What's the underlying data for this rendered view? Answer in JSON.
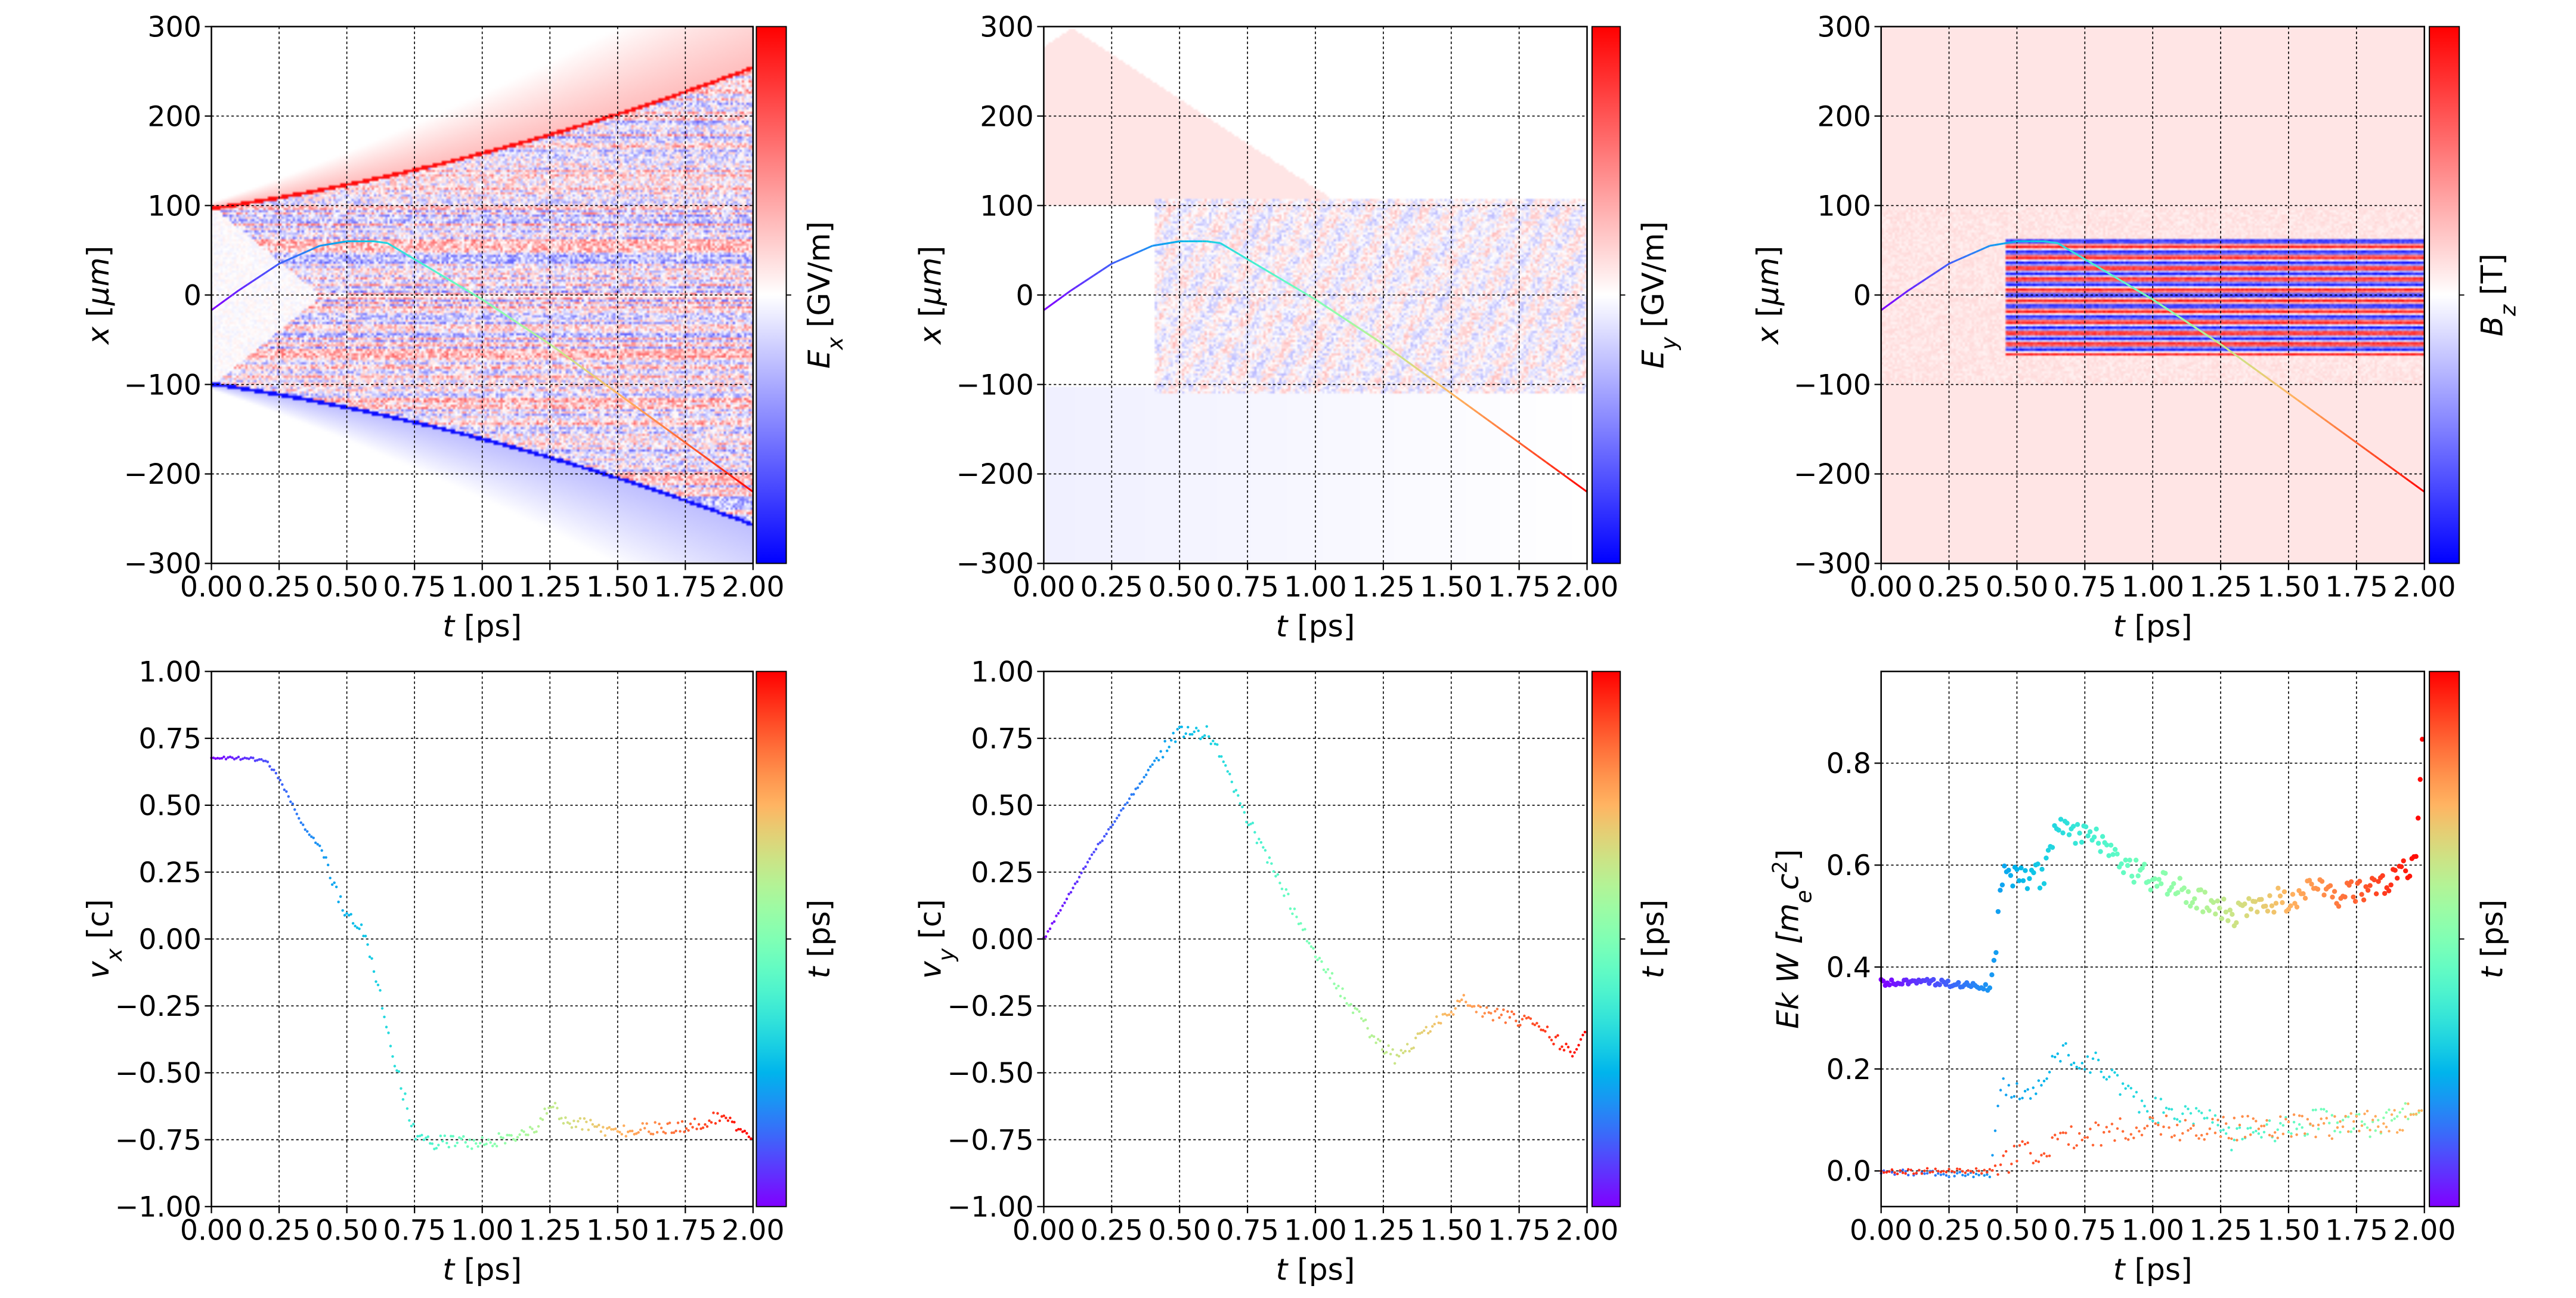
{
  "figure": {
    "panels": [
      {
        "ylabel": [
          {
            "t": "x",
            "i": true
          },
          {
            "t": "  [",
            "i": false
          },
          {
            "t": "μm",
            "i": true
          },
          {
            "t": "]"
          }
        ],
        "xlabel": [
          {
            "t": "t",
            "i": true
          },
          {
            "t": "  [ps]"
          }
        ],
        "colorbar_label": [
          {
            "t": "E",
            "i": true
          },
          {
            "t": "x",
            "i": true,
            "sub": true
          },
          {
            "t": "  [GV/m]"
          }
        ],
        "colormap": "bwr"
      },
      {
        "ylabel": [
          {
            "t": "x",
            "i": true
          },
          {
            "t": "  [",
            "i": false
          },
          {
            "t": "μm",
            "i": true
          },
          {
            "t": "]"
          }
        ],
        "xlabel": [
          {
            "t": "t",
            "i": true
          },
          {
            "t": "  [ps]"
          }
        ],
        "colorbar_label": [
          {
            "t": "E",
            "i": true
          },
          {
            "t": "y",
            "i": true,
            "sub": true
          },
          {
            "t": "  [GV/m]"
          }
        ],
        "colormap": "bwr"
      },
      {
        "ylabel": [
          {
            "t": "x",
            "i": true
          },
          {
            "t": "  [",
            "i": false
          },
          {
            "t": "μm",
            "i": true
          },
          {
            "t": "]"
          }
        ],
        "xlabel": [
          {
            "t": "t",
            "i": true
          },
          {
            "t": "  [ps]"
          }
        ],
        "colorbar_label": [
          {
            "t": "B",
            "i": true
          },
          {
            "t": "z",
            "i": true,
            "sub": true
          },
          {
            "t": "  [T]"
          }
        ],
        "colormap": "bwr"
      },
      {
        "ylabel": [
          {
            "t": "v",
            "i": true
          },
          {
            "t": "x",
            "i": true,
            "sub": true
          },
          {
            "t": " [c]"
          }
        ],
        "xlabel": [
          {
            "t": "t",
            "i": true
          },
          {
            "t": "  [ps]"
          }
        ],
        "colorbar_label": [
          {
            "t": "t",
            "i": true
          },
          {
            "t": "  [ps]"
          }
        ],
        "colormap": "rainbow"
      },
      {
        "ylabel": [
          {
            "t": "v",
            "i": true
          },
          {
            "t": "y",
            "i": true,
            "sub": true
          },
          {
            "t": " [c]"
          }
        ],
        "xlabel": [
          {
            "t": "t",
            "i": true
          },
          {
            "t": "  [ps]"
          }
        ],
        "colorbar_label": [
          {
            "t": "t",
            "i": true
          },
          {
            "t": "  [ps]"
          }
        ],
        "colormap": "rainbow"
      },
      {
        "ylabel": [
          {
            "t": "Ek W [",
            "i": true
          },
          {
            "t": "m",
            "i": true
          },
          {
            "t": "e",
            "i": true,
            "sub": true
          },
          {
            "t": "c",
            "i": true
          },
          {
            "t": "2",
            "sup": true
          },
          {
            "t": "]"
          }
        ],
        "xlabel": [
          {
            "t": "t",
            "i": true
          },
          {
            "t": "  [ps]"
          }
        ],
        "colorbar_label": [
          {
            "t": "t",
            "i": true
          },
          {
            "t": "  [ps]"
          }
        ],
        "colormap": "rainbow"
      }
    ]
  },
  "chart_data": [
    {
      "type": "heatmap",
      "field": "Ex",
      "xlim": [
        0,
        2
      ],
      "ylim": [
        -300,
        300
      ],
      "grid": true,
      "xticks": [
        "0.00",
        "0.25",
        "0.50",
        "0.75",
        "1.00",
        "1.25",
        "1.50",
        "1.75",
        "2.00"
      ],
      "yticks": [
        "−300",
        "−200",
        "−100",
        "0",
        "100",
        "200",
        "300"
      ],
      "trajectory": {
        "t": [
          0,
          0.1,
          0.25,
          0.4,
          0.5,
          0.6,
          0.65,
          0.75,
          1.0,
          1.25,
          1.5,
          1.75,
          2.0
        ],
        "x": [
          -17,
          5,
          35,
          55,
          60,
          60,
          58,
          40,
          -5,
          -55,
          -110,
          -165,
          -220
        ]
      }
    },
    {
      "type": "heatmap",
      "field": "Ey",
      "xlim": [
        0,
        2
      ],
      "ylim": [
        -300,
        300
      ],
      "grid": true,
      "xticks": [
        "0.00",
        "0.25",
        "0.50",
        "0.75",
        "1.00",
        "1.25",
        "1.50",
        "1.75",
        "2.00"
      ],
      "yticks": [
        "−300",
        "−200",
        "−100",
        "0",
        "100",
        "200",
        "300"
      ],
      "trajectory": {
        "t": [
          0,
          0.1,
          0.25,
          0.4,
          0.5,
          0.6,
          0.65,
          0.75,
          1.0,
          1.25,
          1.5,
          1.75,
          2.0
        ],
        "x": [
          -17,
          5,
          35,
          55,
          60,
          60,
          58,
          40,
          -5,
          -55,
          -110,
          -165,
          -220
        ]
      }
    },
    {
      "type": "heatmap",
      "field": "Bz",
      "xlim": [
        0,
        2
      ],
      "ylim": [
        -300,
        300
      ],
      "grid": true,
      "xticks": [
        "0.00",
        "0.25",
        "0.50",
        "0.75",
        "1.00",
        "1.25",
        "1.50",
        "1.75",
        "2.00"
      ],
      "yticks": [
        "−300",
        "−200",
        "−100",
        "0",
        "100",
        "200",
        "300"
      ],
      "trajectory": {
        "t": [
          0,
          0.1,
          0.25,
          0.4,
          0.5,
          0.6,
          0.65,
          0.75,
          1.0,
          1.25,
          1.5,
          1.75,
          2.0
        ],
        "x": [
          -17,
          5,
          35,
          55,
          60,
          60,
          58,
          40,
          -5,
          -55,
          -110,
          -165,
          -220
        ]
      }
    },
    {
      "type": "scatter",
      "xlim": [
        0,
        2
      ],
      "ylim": [
        -1,
        1
      ],
      "grid": true,
      "xticks": [
        "0.00",
        "0.25",
        "0.50",
        "0.75",
        "1.00",
        "1.25",
        "1.50",
        "1.75",
        "2.00"
      ],
      "yticks": [
        "−1.00",
        "−0.75",
        "−0.50",
        "−0.25",
        "0.00",
        "0.25",
        "0.50",
        "0.75",
        "1.00"
      ],
      "series": [
        {
          "t": [
            0,
            0.2,
            0.25,
            0.3,
            0.35,
            0.4,
            0.45,
            0.5,
            0.55,
            0.6,
            0.65,
            0.7,
            0.75,
            0.8,
            1.0,
            1.2,
            1.25,
            1.3,
            1.4,
            1.5,
            1.75,
            1.9,
            2.0
          ],
          "y": [
            0.68,
            0.67,
            0.6,
            0.5,
            0.4,
            0.35,
            0.2,
            0.08,
            0.05,
            -0.1,
            -0.35,
            -0.55,
            -0.72,
            -0.76,
            -0.76,
            -0.72,
            -0.6,
            -0.68,
            -0.7,
            -0.72,
            -0.7,
            -0.66,
            -0.75
          ],
          "cmap_range": [
            0,
            1
          ]
        }
      ]
    },
    {
      "type": "scatter",
      "xlim": [
        0,
        2
      ],
      "ylim": [
        -1,
        1
      ],
      "grid": true,
      "xticks": [
        "0.00",
        "0.25",
        "0.50",
        "0.75",
        "1.00",
        "1.25",
        "1.50",
        "1.75",
        "2.00"
      ],
      "yticks": [
        "−1.00",
        "−0.75",
        "−0.50",
        "−0.25",
        "0.00",
        "0.25",
        "0.50",
        "0.75",
        "1.00"
      ],
      "series": [
        {
          "t": [
            0,
            0.1,
            0.2,
            0.3,
            0.4,
            0.45,
            0.5,
            0.6,
            0.65,
            0.7,
            0.8,
            0.9,
            1.0,
            1.1,
            1.2,
            1.3,
            1.4,
            1.5,
            1.55,
            1.6,
            1.75,
            1.85,
            1.95,
            2.0
          ],
          "y": [
            0,
            0.18,
            0.35,
            0.5,
            0.65,
            0.72,
            0.77,
            0.77,
            0.7,
            0.55,
            0.35,
            0.15,
            -0.05,
            -0.2,
            -0.35,
            -0.45,
            -0.35,
            -0.27,
            -0.22,
            -0.27,
            -0.3,
            -0.35,
            -0.43,
            -0.33
          ],
          "cmap_range": [
            0,
            1
          ]
        }
      ]
    },
    {
      "type": "scatter",
      "xlim": [
        0,
        2
      ],
      "ylim": [
        -0.07,
        0.98
      ],
      "grid": true,
      "xticks": [
        "0.00",
        "0.25",
        "0.50",
        "0.75",
        "1.00",
        "1.25",
        "1.50",
        "1.75",
        "2.00"
      ],
      "yticks": [
        "0.0",
        "0.2",
        "0.4",
        "0.6",
        "0.8"
      ],
      "series": [
        {
          "t": [
            0,
            0.2,
            0.4,
            0.42,
            0.45,
            0.5,
            0.6,
            0.65,
            0.75,
            0.85,
            0.9,
            1.0,
            1.2,
            1.3,
            1.4,
            1.5,
            1.6,
            1.7,
            1.8,
            1.9,
            1.97,
            2.0
          ],
          "y": [
            0.37,
            0.37,
            0.36,
            0.43,
            0.6,
            0.57,
            0.58,
            0.68,
            0.66,
            0.64,
            0.6,
            0.57,
            0.53,
            0.5,
            0.53,
            0.53,
            0.56,
            0.54,
            0.56,
            0.57,
            0.62,
            0.93
          ],
          "cmap_range": [
            0,
            1
          ]
        },
        {
          "t": [
            0,
            0.4,
            0.44,
            0.55,
            0.6,
            0.65,
            0.8,
            0.9,
            1.0,
            1.2,
            1.3,
            1.4,
            1.6,
            1.8,
            2.0
          ],
          "y": [
            0,
            -0.01,
            0.17,
            0.16,
            0.16,
            0.23,
            0.21,
            0.16,
            0.12,
            0.1,
            0.06,
            0.07,
            0.1,
            0.09,
            0.12
          ],
          "cmap_range": [
            0.12,
            0.55
          ]
        },
        {
          "t": [
            0,
            0.4,
            0.5,
            0.75,
            1.0,
            1.5,
            1.75,
            1.9,
            2.0
          ],
          "y": [
            0,
            0,
            0.03,
            0.07,
            0.085,
            0.085,
            0.09,
            0.1,
            0.12
          ],
          "cmap_range": [
            0.95,
            0.75
          ]
        }
      ]
    }
  ]
}
